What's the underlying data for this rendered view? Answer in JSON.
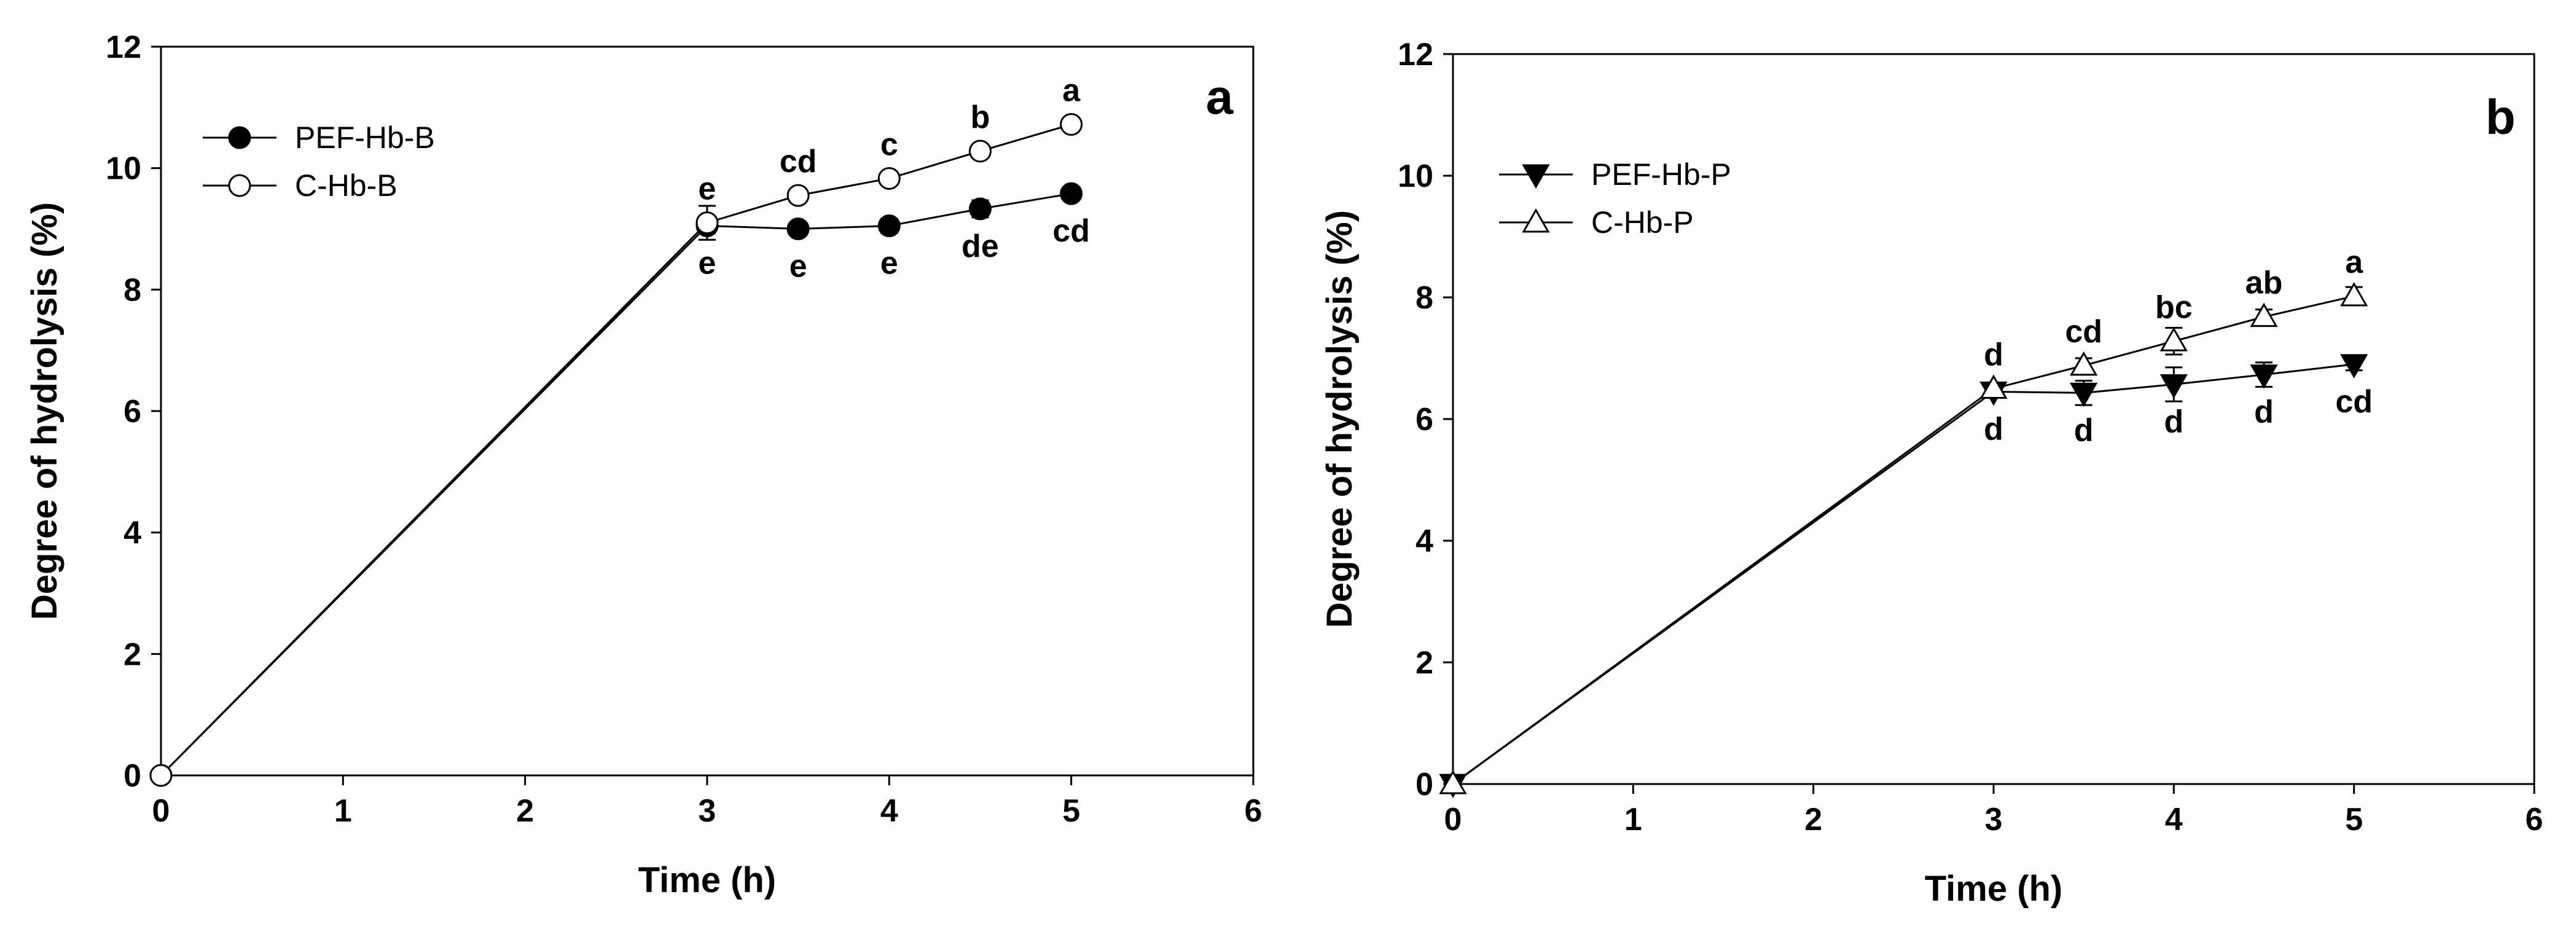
{
  "chart_data": [
    {
      "type": "line",
      "panel_label": "a",
      "xlabel": "Time (h)",
      "ylabel": "Degree of hydrolysis (%)",
      "xlim": [
        0,
        6
      ],
      "ylim": [
        0,
        12
      ],
      "xticks": [
        "0",
        "1",
        "2",
        "3",
        "4",
        "5",
        "6"
      ],
      "yticks": [
        "0",
        "2",
        "4",
        "6",
        "8",
        "10",
        "12"
      ],
      "grid": false,
      "legend_position": "top-left",
      "series": [
        {
          "name": "PEF-Hb-B",
          "marker": "circle-filled",
          "x": [
            0,
            3,
            3.5,
            4,
            4.5,
            5
          ],
          "y": [
            0,
            9.05,
            9.0,
            9.05,
            9.33,
            9.58
          ],
          "error": [
            0,
            0.12,
            0.08,
            0.12,
            0.14,
            0.1
          ],
          "labels": [
            "",
            "e",
            "e",
            "e",
            "de",
            "cd"
          ],
          "label_side": "below"
        },
        {
          "name": "C-Hb-B",
          "marker": "circle-open",
          "x": [
            0,
            3,
            3.5,
            4,
            4.5,
            5
          ],
          "y": [
            0,
            9.1,
            9.55,
            9.83,
            10.28,
            10.72
          ],
          "error": [
            0,
            0.28,
            0.1,
            0.1,
            0.1,
            0.1
          ],
          "labels": [
            "",
            "e",
            "cd",
            "c",
            "b",
            "a"
          ],
          "label_side": "above"
        }
      ]
    },
    {
      "type": "line",
      "panel_label": "b",
      "xlabel": "Time (h)",
      "ylabel": "Degree of hydrolysis (%)",
      "xlim": [
        0,
        6
      ],
      "ylim": [
        0,
        12
      ],
      "xticks": [
        "0",
        "1",
        "2",
        "3",
        "4",
        "5",
        "6"
      ],
      "yticks": [
        "0",
        "2",
        "4",
        "6",
        "8",
        "10",
        "12"
      ],
      "grid": false,
      "legend_position": "top-left",
      "series": [
        {
          "name": "PEF-Hb-P",
          "marker": "triangle-down-filled",
          "x": [
            0,
            3,
            3.5,
            4,
            4.5,
            5
          ],
          "y": [
            0,
            6.45,
            6.43,
            6.57,
            6.73,
            6.9
          ],
          "error": [
            0,
            0.1,
            0.2,
            0.28,
            0.2,
            0.1
          ],
          "labels": [
            "",
            "d",
            "d",
            "d",
            "d",
            "cd"
          ],
          "label_side": "below"
        },
        {
          "name": "C-Hb-P",
          "marker": "triangle-up-open",
          "x": [
            0,
            3,
            3.5,
            4,
            4.5,
            5
          ],
          "y": [
            0,
            6.5,
            6.88,
            7.28,
            7.68,
            8.02
          ],
          "error": [
            0,
            0.1,
            0.12,
            0.22,
            0.12,
            0.15
          ],
          "labels": [
            "",
            "d",
            "cd",
            "bc",
            "ab",
            "a"
          ],
          "label_side": "above"
        }
      ]
    }
  ]
}
